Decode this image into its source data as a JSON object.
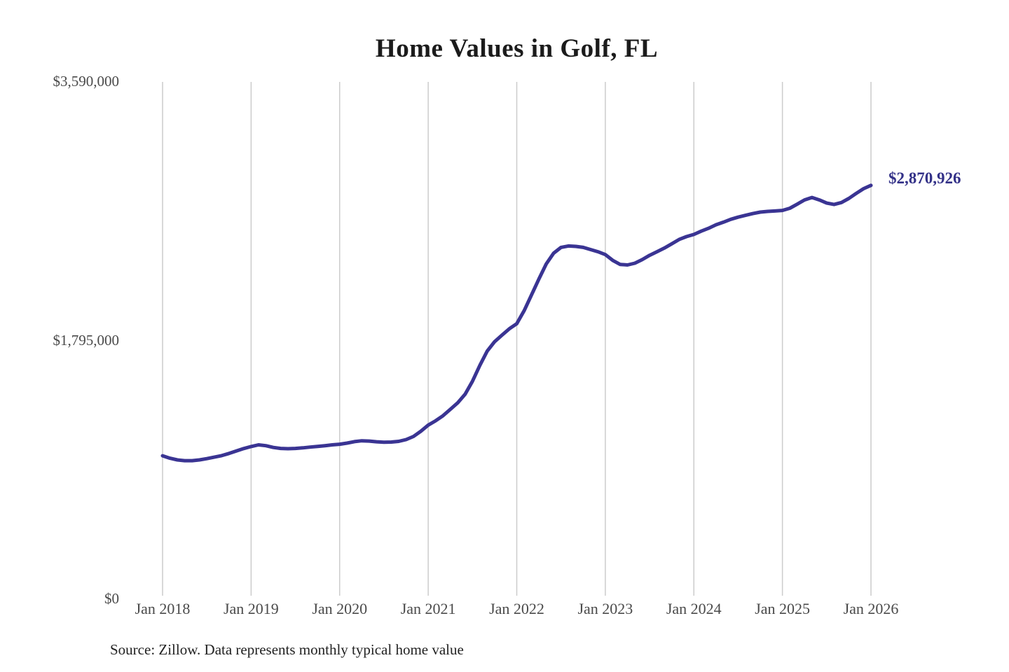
{
  "title": "Home Values in Golf, FL",
  "source_note": "Source: Zillow. Data represents monthly typical home value",
  "colors": {
    "line": "#3a3493",
    "grid": "#cccccc",
    "title_text": "#1b1b1b",
    "axis_text": "#4a4a4a",
    "end_label_text": "#333188",
    "background": "#ffffff"
  },
  "chart_data": {
    "type": "line",
    "title": "Home Values in Golf, FL",
    "xlabel": "",
    "ylabel": "",
    "ylim": [
      0,
      3590000
    ],
    "grid": "vertical-only",
    "legend": null,
    "frequency": "monthly",
    "start": "Jan 2018",
    "end": "Jan 2026",
    "x_ticks": [
      "Jan 2018",
      "Jan 2019",
      "Jan 2020",
      "Jan 2021",
      "Jan 2022",
      "Jan 2023",
      "Jan 2024",
      "Jan 2025",
      "Jan 2026"
    ],
    "y_ticks": [
      {
        "label": "$0",
        "value": 0
      },
      {
        "label": "$1,795,000",
        "value": 1795000
      },
      {
        "label": "$3,590,000",
        "value": 3590000
      }
    ],
    "end_label": "$2,870,926",
    "end_value": 2870926,
    "values": [
      992000,
      975000,
      963000,
      958000,
      958000,
      963000,
      972000,
      982000,
      993000,
      1008000,
      1025000,
      1042000,
      1056000,
      1068000,
      1062000,
      1050000,
      1043000,
      1041000,
      1043000,
      1047000,
      1052000,
      1057000,
      1062000,
      1068000,
      1072000,
      1080000,
      1090000,
      1096000,
      1094000,
      1089000,
      1086000,
      1087000,
      1092000,
      1104000,
      1126000,
      1162000,
      1205000,
      1235000,
      1270000,
      1315000,
      1360000,
      1420000,
      1510000,
      1620000,
      1720000,
      1785000,
      1830000,
      1875000,
      1910000,
      2000000,
      2110000,
      2220000,
      2325000,
      2400000,
      2440000,
      2450000,
      2447000,
      2440000,
      2425000,
      2410000,
      2390000,
      2350000,
      2322000,
      2318000,
      2330000,
      2355000,
      2385000,
      2410000,
      2435000,
      2465000,
      2495000,
      2515000,
      2530000,
      2553000,
      2573000,
      2597000,
      2615000,
      2635000,
      2650000,
      2663000,
      2675000,
      2685000,
      2690000,
      2693000,
      2697000,
      2712000,
      2740000,
      2770000,
      2787000,
      2770000,
      2748000,
      2738000,
      2752000,
      2780000,
      2815000,
      2848000,
      2870926
    ]
  }
}
